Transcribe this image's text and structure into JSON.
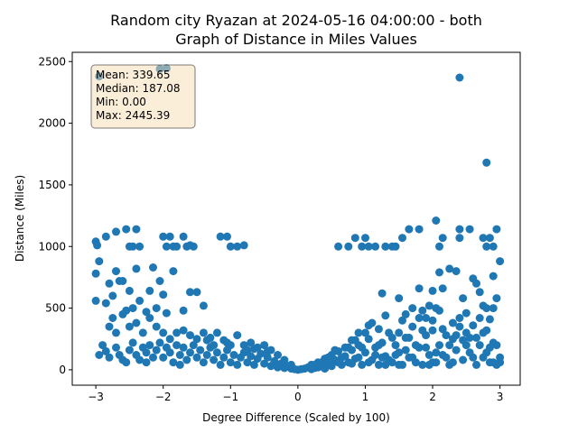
{
  "chart_data": {
    "type": "scatter",
    "title_line1": "Random city Ryazan at 2024-05-16 04:00:00  - both",
    "title_line2": "Graph of Distance in Miles Values",
    "xlabel": "Degree Difference (Scaled by 100)",
    "ylabel": "Distance (Miles)",
    "xlim": [
      -3.35,
      3.3
    ],
    "ylim": [
      -125,
      2575
    ],
    "xticks": [
      -3,
      -2,
      -1,
      0,
      1,
      2,
      3
    ],
    "yticks": [
      0,
      500,
      1000,
      1500,
      2000,
      2500
    ],
    "grid": false,
    "marker_color": "#1f77b4",
    "stats_box": {
      "placement": "top-left",
      "lines": [
        "Mean: 339.65",
        "Median: 187.08",
        "Min: 0.00",
        "Max: 2445.39"
      ],
      "face_color": "#f5deb3"
    },
    "outliers": [
      [
        -2.95,
        2380
      ],
      [
        -2.05,
        2440
      ],
      [
        -1.95,
        2445
      ],
      [
        2.4,
        2370
      ],
      [
        2.8,
        1680
      ]
    ],
    "points": [
      [
        -3.0,
        1040
      ],
      [
        -2.98,
        1010
      ],
      [
        -2.85,
        1080
      ],
      [
        -2.7,
        1120
      ],
      [
        -2.55,
        1140
      ],
      [
        -2.4,
        1140
      ],
      [
        -2.5,
        1000
      ],
      [
        -2.35,
        1000
      ],
      [
        -2.45,
        1000
      ],
      [
        -2.0,
        1080
      ],
      [
        -1.9,
        1080
      ],
      [
        -1.95,
        1000
      ],
      [
        -1.8,
        1000
      ],
      [
        -1.7,
        1080
      ],
      [
        -1.65,
        1000
      ],
      [
        -1.55,
        1000
      ],
      [
        -1.15,
        1080
      ],
      [
        -1.05,
        1080
      ],
      [
        -1.0,
        1000
      ],
      [
        -0.9,
        1000
      ],
      [
        -0.8,
        1010
      ],
      [
        -1.6,
        1010
      ],
      [
        -1.85,
        1000
      ],
      [
        0.6,
        1000
      ],
      [
        0.75,
        1000
      ],
      [
        0.85,
        1070
      ],
      [
        0.95,
        1000
      ],
      [
        1.05,
        1000
      ],
      [
        1.15,
        1000
      ],
      [
        1.3,
        1000
      ],
      [
        1.4,
        1000
      ],
      [
        1.55,
        1070
      ],
      [
        1.65,
        1140
      ],
      [
        1.8,
        1140
      ],
      [
        2.05,
        1210
      ],
      [
        2.1,
        1000
      ],
      [
        2.15,
        1070
      ],
      [
        2.4,
        1140
      ],
      [
        2.4,
        1070
      ],
      [
        2.55,
        1140
      ],
      [
        2.75,
        1070
      ],
      [
        2.8,
        1000
      ],
      [
        2.85,
        1070
      ],
      [
        2.95,
        1140
      ],
      [
        2.9,
        1000
      ],
      [
        1.0,
        1070
      ],
      [
        1.45,
        1000
      ],
      [
        -3.0,
        780
      ],
      [
        -2.95,
        880
      ],
      [
        -2.8,
        700
      ],
      [
        -2.7,
        800
      ],
      [
        -2.6,
        720
      ],
      [
        -2.5,
        640
      ],
      [
        -2.4,
        820
      ],
      [
        -2.2,
        640
      ],
      [
        -2.15,
        830
      ],
      [
        -2.05,
        720
      ],
      [
        -2.0,
        610
      ],
      [
        -1.85,
        800
      ],
      [
        -1.6,
        630
      ],
      [
        -1.5,
        630
      ],
      [
        -3.0,
        560
      ],
      [
        -2.85,
        540
      ],
      [
        -2.75,
        600
      ],
      [
        -2.65,
        720
      ],
      [
        -2.55,
        480
      ],
      [
        -2.45,
        500
      ],
      [
        -2.35,
        560
      ],
      [
        -2.25,
        470
      ],
      [
        -2.1,
        500
      ],
      [
        -1.95,
        460
      ],
      [
        -1.7,
        480
      ],
      [
        -1.4,
        520
      ],
      [
        1.25,
        620
      ],
      [
        1.5,
        580
      ],
      [
        1.6,
        450
      ],
      [
        1.7,
        500
      ],
      [
        1.8,
        660
      ],
      [
        1.95,
        520
      ],
      [
        2.0,
        640
      ],
      [
        2.1,
        790
      ],
      [
        2.15,
        660
      ],
      [
        2.25,
        820
      ],
      [
        2.35,
        800
      ],
      [
        2.45,
        580
      ],
      [
        2.6,
        740
      ],
      [
        2.65,
        700
      ],
      [
        2.7,
        630
      ],
      [
        2.8,
        500
      ],
      [
        2.9,
        760
      ],
      [
        2.95,
        580
      ],
      [
        3.0,
        880
      ],
      [
        2.05,
        500
      ],
      [
        2.3,
        380
      ],
      [
        2.5,
        460
      ],
      [
        2.75,
        520
      ],
      [
        2.85,
        410
      ],
      [
        2.9,
        500
      ],
      [
        1.85,
        480
      ],
      [
        1.55,
        400
      ],
      [
        -2.8,
        350
      ],
      [
        -2.75,
        420
      ],
      [
        -2.7,
        300
      ],
      [
        -2.6,
        450
      ],
      [
        -2.5,
        350
      ],
      [
        -2.4,
        380
      ],
      [
        -2.3,
        300
      ],
      [
        -2.2,
        420
      ],
      [
        -2.1,
        350
      ],
      [
        -2.0,
        300
      ],
      [
        -1.9,
        250
      ],
      [
        -1.8,
        300
      ],
      [
        -1.7,
        320
      ],
      [
        -1.6,
        280
      ],
      [
        -1.5,
        250
      ],
      [
        -1.4,
        300
      ],
      [
        -1.3,
        260
      ],
      [
        -1.2,
        300
      ],
      [
        -1.1,
        240
      ],
      [
        -1.0,
        200
      ],
      [
        -0.9,
        280
      ],
      [
        -0.8,
        200
      ],
      [
        -0.7,
        220
      ],
      [
        -0.6,
        180
      ],
      [
        -0.5,
        200
      ],
      [
        -0.4,
        160
      ],
      [
        -0.3,
        120
      ],
      [
        -0.2,
        80
      ],
      [
        -0.1,
        40
      ],
      [
        -2.9,
        200
      ],
      [
        -2.85,
        150
      ],
      [
        -2.8,
        100
      ],
      [
        -2.7,
        180
      ],
      [
        -2.65,
        120
      ],
      [
        -2.6,
        80
      ],
      [
        -2.5,
        160
      ],
      [
        -2.45,
        220
      ],
      [
        -2.4,
        120
      ],
      [
        -2.35,
        80
      ],
      [
        -2.3,
        180
      ],
      [
        -2.25,
        140
      ],
      [
        -2.2,
        200
      ],
      [
        -2.15,
        100
      ],
      [
        -2.1,
        160
      ],
      [
        -2.05,
        220
      ],
      [
        -2.0,
        100
      ],
      [
        -1.95,
        180
      ],
      [
        -1.9,
        140
      ],
      [
        -1.85,
        60
      ],
      [
        -1.8,
        200
      ],
      [
        -1.75,
        120
      ],
      [
        -1.7,
        180
      ],
      [
        -1.65,
        80
      ],
      [
        -1.6,
        140
      ],
      [
        -1.55,
        200
      ],
      [
        -1.5,
        100
      ],
      [
        -1.45,
        160
      ],
      [
        -1.4,
        60
      ],
      [
        -1.35,
        120
      ],
      [
        -1.3,
        180
      ],
      [
        -1.25,
        80
      ],
      [
        -1.2,
        140
      ],
      [
        -1.15,
        40
      ],
      [
        -1.1,
        100
      ],
      [
        -1.05,
        160
      ],
      [
        -1.0,
        60
      ],
      [
        -0.95,
        120
      ],
      [
        -0.9,
        40
      ],
      [
        -0.85,
        100
      ],
      [
        -0.8,
        140
      ],
      [
        -0.75,
        60
      ],
      [
        -0.7,
        110
      ],
      [
        -0.65,
        40
      ],
      [
        -0.6,
        90
      ],
      [
        -0.55,
        130
      ],
      [
        -0.5,
        50
      ],
      [
        -0.45,
        100
      ],
      [
        -0.4,
        30
      ],
      [
        -0.35,
        70
      ],
      [
        -0.3,
        20
      ],
      [
        -0.25,
        50
      ],
      [
        -0.2,
        15
      ],
      [
        -0.15,
        30
      ],
      [
        -0.1,
        10
      ],
      [
        -0.05,
        5
      ],
      [
        -2.95,
        120
      ],
      [
        -2.55,
        60
      ],
      [
        -2.25,
        60
      ],
      [
        -1.75,
        40
      ],
      [
        -1.25,
        200
      ],
      [
        -0.75,
        160
      ],
      [
        -0.45,
        150
      ],
      [
        -1.35,
        240
      ],
      [
        -1.05,
        220
      ],
      [
        -0.65,
        170
      ],
      [
        0.0,
        0
      ],
      [
        0.05,
        5
      ],
      [
        0.1,
        10
      ],
      [
        0.15,
        20
      ],
      [
        0.2,
        40
      ],
      [
        0.25,
        15
      ],
      [
        0.3,
        60
      ],
      [
        0.35,
        30
      ],
      [
        0.4,
        90
      ],
      [
        0.45,
        50
      ],
      [
        0.5,
        120
      ],
      [
        0.55,
        80
      ],
      [
        0.6,
        150
      ],
      [
        0.65,
        40
      ],
      [
        0.7,
        110
      ],
      [
        0.75,
        60
      ],
      [
        0.8,
        160
      ],
      [
        0.85,
        90
      ],
      [
        0.9,
        200
      ],
      [
        0.95,
        40
      ],
      [
        1.0,
        140
      ],
      [
        1.05,
        250
      ],
      [
        1.1,
        80
      ],
      [
        1.15,
        180
      ],
      [
        1.2,
        40
      ],
      [
        1.25,
        220
      ],
      [
        1.3,
        110
      ],
      [
        1.35,
        300
      ],
      [
        1.4,
        60
      ],
      [
        1.45,
        200
      ],
      [
        1.5,
        140
      ],
      [
        1.55,
        40
      ],
      [
        1.6,
        260
      ],
      [
        1.65,
        100
      ],
      [
        1.7,
        350
      ],
      [
        1.75,
        60
      ],
      [
        1.8,
        180
      ],
      [
        1.85,
        40
      ],
      [
        1.9,
        280
      ],
      [
        1.95,
        120
      ],
      [
        2.0,
        400
      ],
      [
        2.05,
        60
      ],
      [
        2.1,
        200
      ],
      [
        2.15,
        330
      ],
      [
        2.2,
        100
      ],
      [
        2.25,
        40
      ],
      [
        2.3,
        250
      ],
      [
        2.35,
        160
      ],
      [
        2.4,
        420
      ],
      [
        2.45,
        80
      ],
      [
        2.5,
        300
      ],
      [
        2.55,
        140
      ],
      [
        2.6,
        360
      ],
      [
        2.65,
        40
      ],
      [
        2.7,
        200
      ],
      [
        2.75,
        100
      ],
      [
        2.8,
        320
      ],
      [
        2.85,
        60
      ],
      [
        2.9,
        220
      ],
      [
        2.95,
        40
      ],
      [
        3.0,
        100
      ],
      [
        0.3,
        20
      ],
      [
        0.4,
        10
      ],
      [
        0.5,
        30
      ],
      [
        0.55,
        160
      ],
      [
        0.65,
        100
      ],
      [
        0.75,
        180
      ],
      [
        0.8,
        50
      ],
      [
        0.85,
        240
      ],
      [
        0.9,
        100
      ],
      [
        1.0,
        300
      ],
      [
        1.05,
        60
      ],
      [
        1.1,
        380
      ],
      [
        1.2,
        200
      ],
      [
        1.25,
        100
      ],
      [
        1.3,
        40
      ],
      [
        1.4,
        260
      ],
      [
        1.5,
        40
      ],
      [
        1.6,
        160
      ],
      [
        1.7,
        100
      ],
      [
        1.8,
        420
      ],
      [
        1.9,
        180
      ],
      [
        2.0,
        60
      ],
      [
        2.1,
        480
      ],
      [
        2.2,
        280
      ],
      [
        2.3,
        60
      ],
      [
        2.4,
        350
      ],
      [
        2.5,
        200
      ],
      [
        2.6,
        100
      ],
      [
        2.7,
        420
      ],
      [
        2.8,
        140
      ],
      [
        2.9,
        60
      ],
      [
        3.0,
        60
      ],
      [
        0.2,
        5
      ],
      [
        0.25,
        40
      ],
      [
        0.35,
        60
      ],
      [
        0.45,
        100
      ],
      [
        0.6,
        60
      ],
      [
        0.7,
        180
      ],
      [
        0.95,
        180
      ],
      [
        1.15,
        120
      ],
      [
        1.35,
        80
      ],
      [
        1.45,
        120
      ],
      [
        1.75,
        200
      ],
      [
        1.95,
        40
      ],
      [
        2.05,
        140
      ],
      [
        2.25,
        200
      ],
      [
        2.45,
        240
      ],
      [
        2.65,
        260
      ],
      [
        2.85,
        180
      ],
      [
        0.8,
        240
      ],
      [
        0.9,
        300
      ],
      [
        1.05,
        360
      ],
      [
        1.2,
        330
      ],
      [
        1.3,
        440
      ],
      [
        1.5,
        300
      ],
      [
        1.65,
        260
      ],
      [
        1.85,
        320
      ],
      [
        1.9,
        420
      ],
      [
        2.0,
        320
      ],
      [
        2.15,
        120
      ],
      [
        2.35,
        280
      ],
      [
        2.55,
        260
      ],
      [
        2.75,
        300
      ],
      [
        2.95,
        200
      ]
    ]
  }
}
